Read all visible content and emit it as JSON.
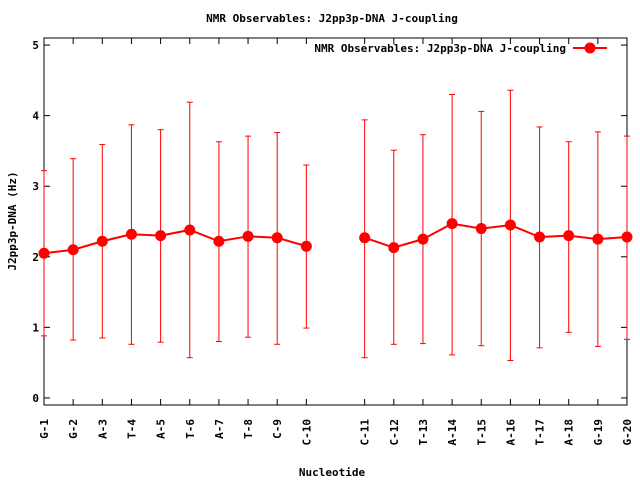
{
  "chart_data": {
    "type": "line",
    "title": "NMR Observables: J2pp3p-DNA J-coupling",
    "xlabel": "Nucleotide",
    "ylabel": "J2pp3p-DNA (Hz)",
    "ylim": [
      -0.1,
      5.1
    ],
    "yticks": [
      0,
      1,
      2,
      3,
      4,
      5
    ],
    "grid": false,
    "legend_position": "top-right",
    "categories": [
      "G-1",
      "G-2",
      "A-3",
      "T-4",
      "A-5",
      "T-6",
      "A-7",
      "T-8",
      "C-9",
      "C-10",
      "C-11",
      "C-12",
      "T-13",
      "A-14",
      "T-15",
      "A-16",
      "T-17",
      "A-18",
      "G-19",
      "G-20"
    ],
    "x_positions": [
      1,
      2,
      3,
      4,
      5,
      6,
      7,
      8,
      9,
      10,
      12,
      13,
      14,
      15,
      16,
      17,
      18,
      19,
      20,
      21
    ],
    "xlim": [
      1,
      21
    ],
    "series": [
      {
        "name": "NMR Observables: J2pp3p-DNA J-coupling",
        "color": "#ff0000",
        "segments": [
          [
            0,
            9
          ],
          [
            10,
            19
          ]
        ],
        "values": [
          2.05,
          2.1,
          2.22,
          2.32,
          2.3,
          2.38,
          2.22,
          2.29,
          2.27,
          2.15,
          2.27,
          2.13,
          2.25,
          2.47,
          2.4,
          2.45,
          2.28,
          2.3,
          2.25,
          2.28
        ],
        "error_low": [
          0.88,
          0.82,
          0.85,
          0.76,
          0.79,
          0.57,
          0.8,
          0.86,
          0.76,
          0.99,
          0.57,
          0.76,
          0.77,
          0.61,
          0.74,
          0.53,
          0.71,
          0.93,
          0.73,
          0.83
        ],
        "error_high": [
          3.22,
          3.39,
          3.59,
          3.87,
          3.8,
          4.19,
          3.63,
          3.71,
          3.76,
          3.3,
          3.94,
          3.51,
          3.73,
          4.3,
          4.06,
          4.36,
          3.84,
          3.63,
          3.77,
          3.71
        ]
      }
    ]
  }
}
